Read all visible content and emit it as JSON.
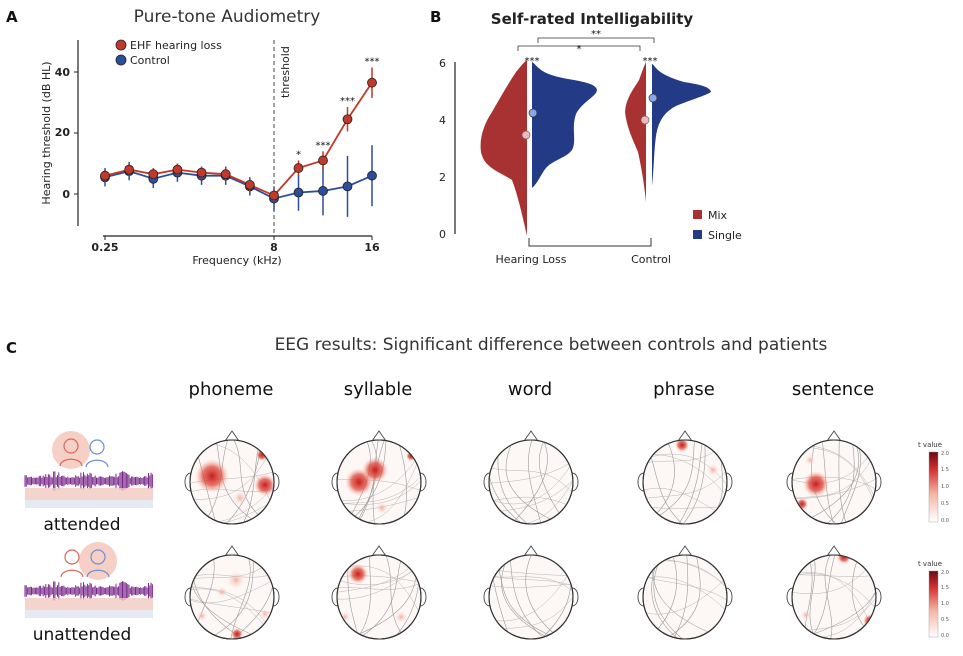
{
  "panels": {
    "a": {
      "letter": "A",
      "title": "Pure-tone Audiometry",
      "ylabel": "Hearing threshold (dB HL)",
      "xlabel": "Frequency (kHz)",
      "threshold_label": "threshold",
      "yticks": [
        "0",
        "20",
        "40"
      ],
      "xticks": [
        "0.25",
        "8",
        "16"
      ],
      "legend": [
        "EHF hearing loss",
        "Control"
      ]
    },
    "b": {
      "letter": "B",
      "title": "Self-rated Intelligability",
      "yticks": [
        "0",
        "2",
        "4",
        "6"
      ],
      "groups": [
        "Hearing Loss",
        "Control"
      ],
      "legend": [
        "Mix",
        "Single"
      ],
      "sig": [
        "**",
        "*",
        "***",
        "***"
      ]
    },
    "c": {
      "letter": "C",
      "title": "EEG results: Significant difference between controls and patients",
      "columns": [
        "phoneme",
        "syllable",
        "word",
        "phrase",
        "sentence"
      ],
      "rows": [
        "attended",
        "unattended"
      ],
      "colorbar_title": "t value",
      "colorbar_ticks": [
        "0.0",
        "0.5",
        "1.0",
        "1.5",
        "2.0"
      ]
    }
  },
  "chart_data": [
    {
      "type": "line",
      "title": "Pure-tone Audiometry",
      "xlabel": "Frequency (kHz)",
      "ylabel": "Hearing threshold (dB HL)",
      "ylim": [
        -8,
        48
      ],
      "series": [
        {
          "name": "EHF hearing loss",
          "color": "#c0392b",
          "values": [
            6,
            8,
            6.5,
            8,
            7,
            6.5,
            3,
            -0.5,
            8.5,
            11,
            24.5,
            36.5
          ],
          "err": [
            2,
            2,
            2,
            2,
            2,
            2,
            2,
            2,
            2.5,
            3,
            4,
            5
          ],
          "sig": [
            "",
            "",
            "",
            "",
            "",
            "",
            "",
            "",
            "*",
            "***",
            "***",
            "***"
          ]
        },
        {
          "name": "Control",
          "color": "#2c4d9a",
          "values": [
            5.5,
            7.5,
            5,
            7,
            6,
            6,
            2.5,
            -1.5,
            0.5,
            1,
            2.5,
            6
          ],
          "err": [
            3,
            3,
            3,
            3,
            3,
            3,
            3,
            4,
            6,
            8,
            10,
            10
          ]
        }
      ],
      "grid": false,
      "legend_position": "top-left"
    },
    {
      "type": "violin",
      "title": "Self-rated Intelligability",
      "categories": [
        "Hearing Loss",
        "Control"
      ],
      "ylim": [
        0,
        6
      ],
      "series": [
        {
          "name": "Mix",
          "color": "#a83232",
          "medians": [
            3.4,
            3.95
          ]
        },
        {
          "name": "Single",
          "color": "#233a86",
          "medians": [
            4.2,
            4.75
          ]
        }
      ],
      "legend_position": "right"
    }
  ],
  "colors": {
    "red": "#b83030",
    "blue": "#233a86",
    "eeg_hot": "#d32a2a"
  }
}
